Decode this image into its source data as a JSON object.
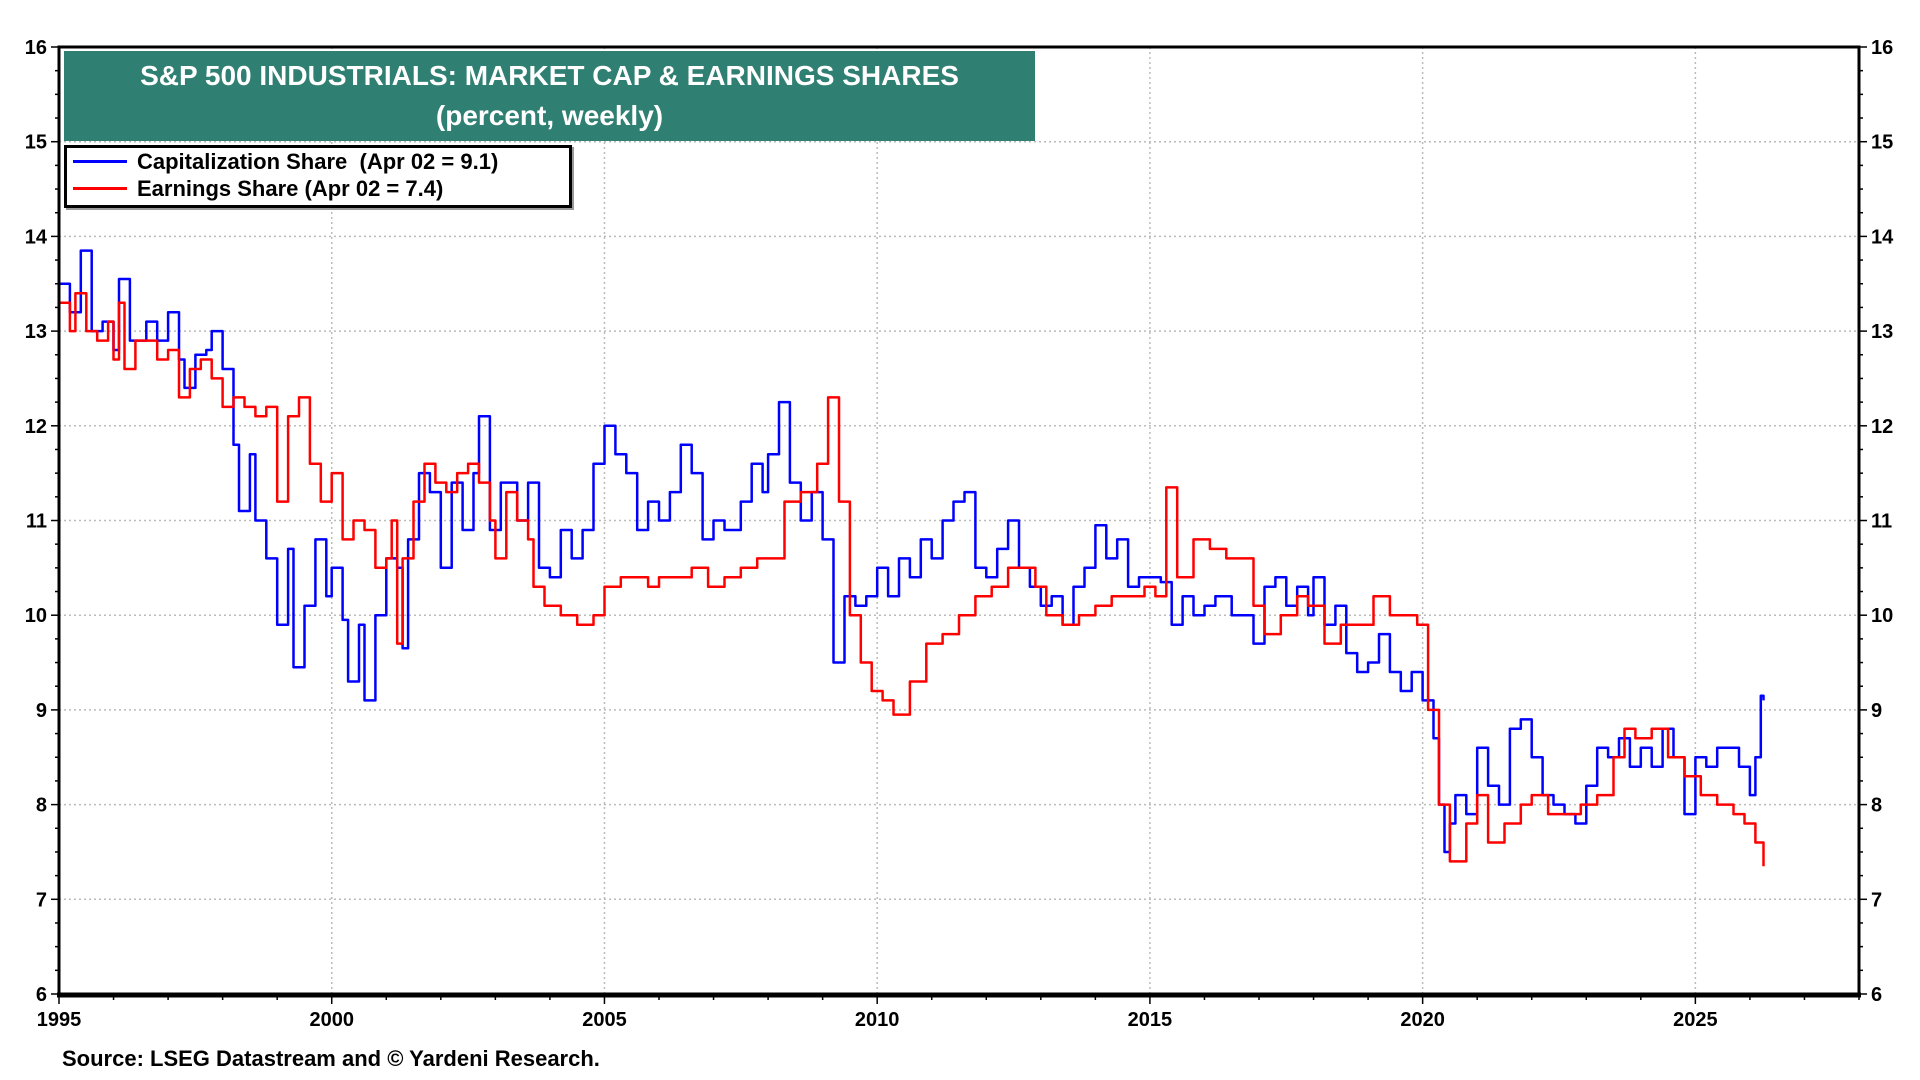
{
  "chart_data": {
    "type": "line",
    "title": "S&P 500 INDUSTRIALS: MARKET CAP & EARNINGS SHARES",
    "subtitle": "(percent, weekly)",
    "xlabel": "",
    "ylabel": "",
    "xlim": [
      1995,
      2028
    ],
    "ylim": [
      6,
      16
    ],
    "x_ticks": [
      "1995",
      "2000",
      "2005",
      "2010",
      "2015",
      "2020",
      "2025"
    ],
    "y_ticks": [
      "6",
      "7",
      "8",
      "9",
      "10",
      "11",
      "12",
      "13",
      "14",
      "15",
      "16"
    ],
    "grid": true,
    "legend_placement": "top-left",
    "source": "Source: LSEG Datastream and © Yardeni Research.",
    "series": [
      {
        "name": "Capitalization Share  (Apr 02 = 9.1)",
        "color": "#0000ff",
        "x": [
          1995.0,
          1995.2,
          1995.4,
          1995.6,
          1995.8,
          1996.0,
          1996.1,
          1996.3,
          1996.6,
          1996.8,
          1997.0,
          1997.2,
          1997.3,
          1997.5,
          1997.7,
          1997.8,
          1998.0,
          1998.2,
          1998.3,
          1998.5,
          1998.6,
          1998.8,
          1999.0,
          1999.2,
          1999.3,
          1999.5,
          1999.7,
          1999.9,
          2000.0,
          2000.2,
          2000.3,
          2000.5,
          2000.6,
          2000.8,
          2001.0,
          2001.2,
          2001.3,
          2001.4,
          2001.6,
          2001.8,
          2002.0,
          2002.2,
          2002.4,
          2002.6,
          2002.7,
          2002.9,
          2003.1,
          2003.4,
          2003.6,
          2003.8,
          2004.0,
          2004.2,
          2004.4,
          2004.6,
          2004.8,
          2005.0,
          2005.2,
          2005.4,
          2005.6,
          2005.8,
          2006.0,
          2006.2,
          2006.4,
          2006.6,
          2006.8,
          2007.0,
          2007.2,
          2007.5,
          2007.7,
          2007.9,
          2008.0,
          2008.2,
          2008.4,
          2008.6,
          2008.8,
          2009.0,
          2009.2,
          2009.4,
          2009.6,
          2009.8,
          2010.0,
          2010.2,
          2010.4,
          2010.6,
          2010.8,
          2011.0,
          2011.2,
          2011.4,
          2011.6,
          2011.8,
          2012.0,
          2012.2,
          2012.4,
          2012.6,
          2012.8,
          2013.0,
          2013.2,
          2013.4,
          2013.6,
          2013.8,
          2014.0,
          2014.2,
          2014.4,
          2014.6,
          2014.8,
          2015.0,
          2015.2,
          2015.4,
          2015.6,
          2015.8,
          2016.0,
          2016.2,
          2016.5,
          2016.7,
          2016.9,
          2017.1,
          2017.3,
          2017.5,
          2017.7,
          2017.9,
          2018.0,
          2018.2,
          2018.4,
          2018.6,
          2018.8,
          2019.0,
          2019.2,
          2019.4,
          2019.6,
          2019.8,
          2020.0,
          2020.2,
          2020.3,
          2020.4,
          2020.5,
          2020.6,
          2020.8,
          2021.0,
          2021.2,
          2021.4,
          2021.6,
          2021.8,
          2022.0,
          2022.2,
          2022.4,
          2022.6,
          2022.8,
          2023.0,
          2023.2,
          2023.4,
          2023.6,
          2023.8,
          2024.0,
          2024.2,
          2024.4,
          2024.6,
          2024.8,
          2025.0,
          2025.2,
          2025.4,
          2025.6,
          2025.8,
          2026.0,
          2026.1,
          2026.2,
          2026.25
        ],
        "values": [
          13.5,
          13.2,
          13.85,
          13.0,
          13.1,
          12.8,
          13.55,
          12.9,
          13.1,
          12.9,
          13.2,
          12.7,
          12.4,
          12.75,
          12.8,
          13.0,
          12.6,
          11.8,
          11.1,
          11.7,
          11.0,
          10.6,
          9.9,
          10.7,
          9.45,
          10.1,
          10.8,
          10.2,
          10.5,
          9.95,
          9.3,
          9.9,
          9.1,
          10.0,
          10.6,
          10.5,
          9.65,
          10.8,
          11.5,
          11.3,
          10.5,
          11.4,
          10.9,
          11.5,
          12.1,
          10.9,
          11.4,
          11.0,
          11.4,
          10.5,
          10.4,
          10.9,
          10.6,
          10.9,
          11.6,
          12.0,
          11.7,
          11.5,
          10.9,
          11.2,
          11.0,
          11.3,
          11.8,
          11.5,
          10.8,
          11.0,
          10.9,
          11.2,
          11.6,
          11.3,
          11.7,
          12.25,
          11.4,
          11.0,
          11.3,
          10.8,
          9.5,
          10.2,
          10.1,
          10.2,
          10.5,
          10.2,
          10.6,
          10.4,
          10.8,
          10.6,
          11.0,
          11.2,
          11.3,
          10.5,
          10.4,
          10.7,
          11.0,
          10.5,
          10.3,
          10.1,
          10.2,
          9.9,
          10.3,
          10.5,
          10.95,
          10.6,
          10.8,
          10.3,
          10.4,
          10.4,
          10.35,
          9.9,
          10.2,
          10.0,
          10.1,
          10.2,
          10.0,
          10.0,
          9.7,
          10.3,
          10.4,
          10.1,
          10.3,
          10.0,
          10.4,
          9.9,
          10.1,
          9.6,
          9.4,
          9.5,
          9.8,
          9.4,
          9.2,
          9.4,
          9.1,
          8.7,
          8.0,
          7.5,
          7.8,
          8.1,
          7.9,
          8.6,
          8.2,
          8.0,
          8.8,
          8.9,
          8.5,
          8.1,
          8.0,
          7.9,
          7.8,
          8.2,
          8.6,
          8.5,
          8.7,
          8.4,
          8.6,
          8.4,
          8.8,
          8.5,
          7.9,
          8.5,
          8.4,
          8.6,
          8.6,
          8.4,
          8.1,
          8.5,
          9.15,
          9.1
        ]
      },
      {
        "name": "Earnings Share (Apr 02 = 7.4)",
        "color": "#ff0000",
        "x": [
          1995.0,
          1995.2,
          1995.3,
          1995.5,
          1995.7,
          1995.9,
          1996.0,
          1996.1,
          1996.2,
          1996.4,
          1996.6,
          1996.8,
          1997.0,
          1997.2,
          1997.4,
          1997.6,
          1997.8,
          1998.0,
          1998.2,
          1998.4,
          1998.6,
          1998.8,
          1999.0,
          1999.2,
          1999.4,
          1999.6,
          1999.8,
          2000.0,
          2000.2,
          2000.4,
          2000.6,
          2000.8,
          2001.0,
          2001.1,
          2001.2,
          2001.3,
          2001.5,
          2001.7,
          2001.9,
          2002.1,
          2002.3,
          2002.5,
          2002.7,
          2002.9,
          2003.0,
          2003.2,
          2003.4,
          2003.6,
          2003.7,
          2003.9,
          2004.2,
          2004.5,
          2004.8,
          2005.0,
          2005.3,
          2005.6,
          2005.8,
          2006.0,
          2006.3,
          2006.6,
          2006.9,
          2007.2,
          2007.5,
          2007.8,
          2008.0,
          2008.3,
          2008.6,
          2008.9,
          2009.1,
          2009.3,
          2009.5,
          2009.7,
          2009.9,
          2010.1,
          2010.3,
          2010.6,
          2010.9,
          2011.2,
          2011.5,
          2011.8,
          2012.1,
          2012.4,
          2012.7,
          2012.9,
          2013.1,
          2013.4,
          2013.7,
          2014.0,
          2014.3,
          2014.6,
          2014.9,
          2015.1,
          2015.3,
          2015.5,
          2015.8,
          2016.1,
          2016.4,
          2016.7,
          2016.9,
          2017.1,
          2017.4,
          2017.7,
          2017.9,
          2018.2,
          2018.5,
          2018.8,
          2019.1,
          2019.4,
          2019.7,
          2019.9,
          2020.1,
          2020.3,
          2020.5,
          2020.8,
          2021.0,
          2021.2,
          2021.5,
          2021.8,
          2022.0,
          2022.3,
          2022.6,
          2022.9,
          2023.2,
          2023.5,
          2023.7,
          2023.9,
          2024.2,
          2024.5,
          2024.8,
          2025.1,
          2025.4,
          2025.7,
          2025.9,
          2026.1,
          2026.25
        ],
        "values": [
          13.3,
          13.0,
          13.4,
          13.0,
          12.9,
          13.1,
          12.7,
          13.3,
          12.6,
          12.9,
          12.9,
          12.7,
          12.8,
          12.3,
          12.6,
          12.7,
          12.5,
          12.2,
          12.3,
          12.2,
          12.1,
          12.2,
          11.2,
          12.1,
          12.3,
          11.6,
          11.2,
          11.5,
          10.8,
          11.0,
          10.9,
          10.5,
          10.6,
          11.0,
          9.7,
          10.6,
          11.2,
          11.6,
          11.4,
          11.3,
          11.5,
          11.6,
          11.4,
          11.0,
          10.6,
          11.3,
          11.0,
          10.8,
          10.3,
          10.1,
          10.0,
          9.9,
          10.0,
          10.3,
          10.4,
          10.4,
          10.3,
          10.4,
          10.4,
          10.5,
          10.3,
          10.4,
          10.5,
          10.6,
          10.6,
          11.2,
          11.3,
          11.6,
          12.3,
          11.2,
          10.0,
          9.5,
          9.2,
          9.1,
          8.95,
          9.3,
          9.7,
          9.8,
          10.0,
          10.2,
          10.3,
          10.5,
          10.5,
          10.3,
          10.0,
          9.9,
          10.0,
          10.1,
          10.2,
          10.2,
          10.3,
          10.2,
          11.35,
          10.4,
          10.8,
          10.7,
          10.6,
          10.6,
          10.1,
          9.8,
          10.0,
          10.2,
          10.1,
          9.7,
          9.9,
          9.9,
          10.2,
          10.0,
          10.0,
          9.9,
          9.0,
          8.0,
          7.4,
          7.8,
          8.1,
          7.6,
          7.8,
          8.0,
          8.1,
          7.9,
          7.9,
          8.0,
          8.1,
          8.5,
          8.8,
          8.7,
          8.8,
          8.5,
          8.3,
          8.1,
          8.0,
          7.9,
          7.8,
          7.6,
          7.35
        ]
      }
    ]
  }
}
